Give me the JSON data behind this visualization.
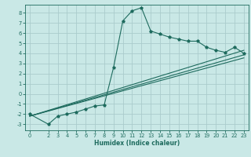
{
  "title": "",
  "xlabel": "Humidex (Indice chaleur)",
  "ylabel": "",
  "bg_color": "#c9e8e6",
  "grid_color": "#aacccc",
  "line_color": "#1e6b5e",
  "xlim": [
    -0.5,
    23.5
  ],
  "ylim": [
    -3.6,
    8.8
  ],
  "xticks": [
    0,
    2,
    3,
    4,
    5,
    6,
    7,
    8,
    9,
    10,
    11,
    12,
    13,
    14,
    15,
    16,
    17,
    18,
    19,
    20,
    21,
    22,
    23
  ],
  "yticks": [
    -3,
    -2,
    -1,
    0,
    1,
    2,
    3,
    4,
    5,
    6,
    7,
    8
  ],
  "line1_x": [
    0,
    2,
    3,
    4,
    5,
    6,
    7,
    8,
    9,
    10,
    11,
    12,
    13,
    14,
    15,
    16,
    17,
    18,
    19,
    20,
    21,
    22,
    23
  ],
  "line1_y": [
    -2.0,
    -3.0,
    -2.2,
    -2.0,
    -1.8,
    -1.5,
    -1.2,
    -1.1,
    2.6,
    7.2,
    8.2,
    8.5,
    6.2,
    5.9,
    5.6,
    5.4,
    5.2,
    5.2,
    4.6,
    4.3,
    4.1,
    4.6,
    4.0
  ],
  "line2_x": [
    0,
    23
  ],
  "line2_y": [
    -2.2,
    4.3
  ],
  "line3_x": [
    0,
    23
  ],
  "line3_y": [
    -2.2,
    3.85
  ],
  "line4_x": [
    0,
    23
  ],
  "line4_y": [
    -2.2,
    3.55
  ],
  "xlabel_fontsize": 5.5,
  "tick_fontsize": 4.8
}
